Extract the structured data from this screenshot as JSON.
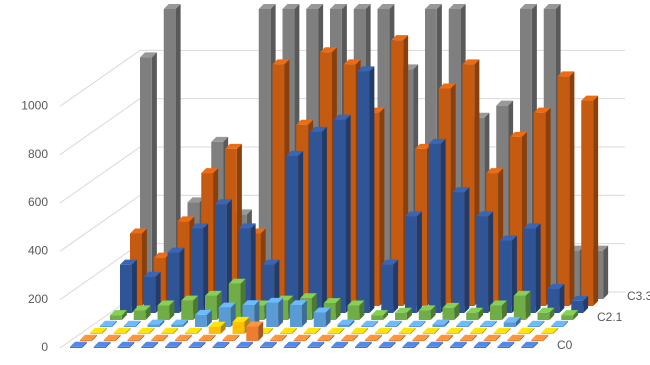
{
  "chart_data": {
    "type": "bar3d",
    "categories": [
      null,
      null,
      null,
      null,
      null,
      null,
      null,
      null,
      null,
      null,
      null,
      null,
      null,
      null,
      null,
      null,
      null,
      null,
      null,
      null
    ],
    "series": [
      {
        "name": "C0",
        "color": "#4472c4",
        "values": [
          5,
          5,
          5,
          5,
          5,
          5,
          5,
          5,
          5,
          5,
          5,
          5,
          5,
          5,
          5,
          5,
          5,
          5,
          5,
          5
        ]
      },
      {
        "name": null,
        "color": "#ed7d31",
        "values": [
          5,
          5,
          5,
          5,
          5,
          5,
          5,
          60,
          5,
          5,
          5,
          5,
          5,
          5,
          5,
          5,
          5,
          5,
          5,
          5
        ]
      },
      {
        "name": null,
        "color": "#ffc000",
        "values": [
          5,
          5,
          5,
          5,
          5,
          30,
          50,
          5,
          5,
          5,
          5,
          5,
          5,
          5,
          5,
          5,
          5,
          5,
          5,
          5
        ]
      },
      {
        "name": null,
        "color": "#5b9bd5",
        "values": [
          5,
          5,
          10,
          10,
          50,
          80,
          90,
          100,
          90,
          60,
          10,
          5,
          5,
          5,
          10,
          5,
          5,
          20,
          5,
          5
        ]
      },
      {
        "name": "C2.1",
        "color": "#70ad47",
        "values": [
          20,
          40,
          60,
          80,
          100,
          150,
          60,
          80,
          90,
          70,
          60,
          20,
          30,
          40,
          50,
          30,
          60,
          100,
          30,
          20
        ]
      },
      {
        "name": null,
        "color": "#2f5597",
        "values": [
          200,
          150,
          250,
          350,
          450,
          350,
          200,
          650,
          750,
          800,
          1000,
          200,
          400,
          700,
          500,
          400,
          300,
          350,
          100,
          50
        ]
      },
      {
        "name": null,
        "color": "#c55a11",
        "values": [
          300,
          200,
          350,
          550,
          650,
          300,
          1000,
          750,
          1050,
          1000,
          800,
          1100,
          650,
          900,
          1000,
          550,
          700,
          800,
          950,
          850
        ]
      },
      {
        "name": "C3.3",
        "color": "#7f7f7f",
        "values": [
          1000,
          1200,
          400,
          650,
          350,
          1200,
          1200,
          1200,
          1200,
          1200,
          1200,
          950,
          1200,
          1200,
          750,
          800,
          1200,
          1200,
          200,
          200
        ]
      }
    ],
    "ylim": [
      0,
      1200
    ],
    "yticks": [
      0,
      200,
      400,
      600,
      800,
      1000
    ],
    "grid": true
  }
}
